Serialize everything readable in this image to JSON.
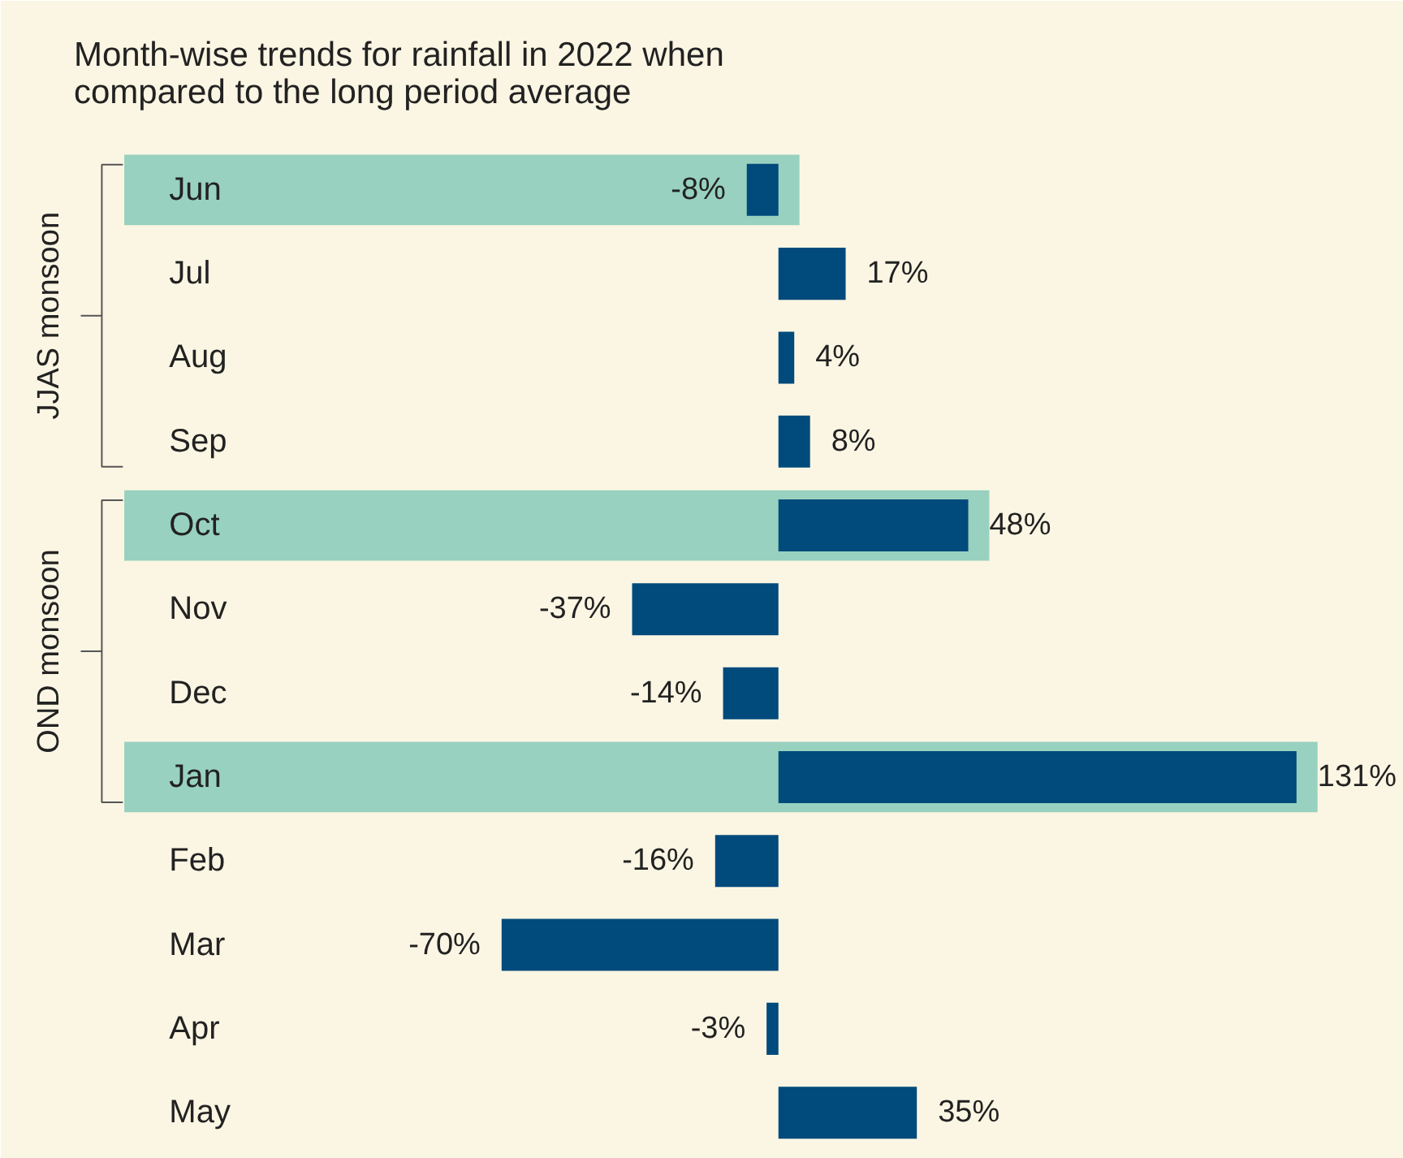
{
  "chart_data": {
    "type": "bar",
    "orientation": "horizontal",
    "title": "Month-wise trends for rainfall in 2022 when\ncompared to the long period average",
    "categories": [
      "Jun",
      "Jul",
      "Aug",
      "Sep",
      "Oct",
      "Nov",
      "Dec",
      "Jan",
      "Feb",
      "Mar",
      "Apr",
      "May"
    ],
    "values": [
      -8,
      17,
      4,
      8,
      48,
      -37,
      -14,
      131,
      -16,
      -70,
      -3,
      35
    ],
    "value_labels": [
      "-8%",
      "17%",
      "4%",
      "8%",
      "48%",
      "-37%",
      "-14%",
      "131%",
      "-16%",
      "-70%",
      "-3%",
      "35%"
    ],
    "color": "#004a7c",
    "bands": [
      {
        "axis": "y",
        "from": "Jun",
        "to": "Jun",
        "color": "#98d1bf"
      },
      {
        "axis": "y",
        "from": "Oct",
        "to": "Oct",
        "color": "#98d1bf"
      },
      {
        "axis": "y",
        "from": "Jan",
        "to": "Jan",
        "color": "#98d1bf"
      }
    ],
    "annotations": [
      "JJAS monsoon",
      "OND monsoon"
    ],
    "grid": false
  }
}
